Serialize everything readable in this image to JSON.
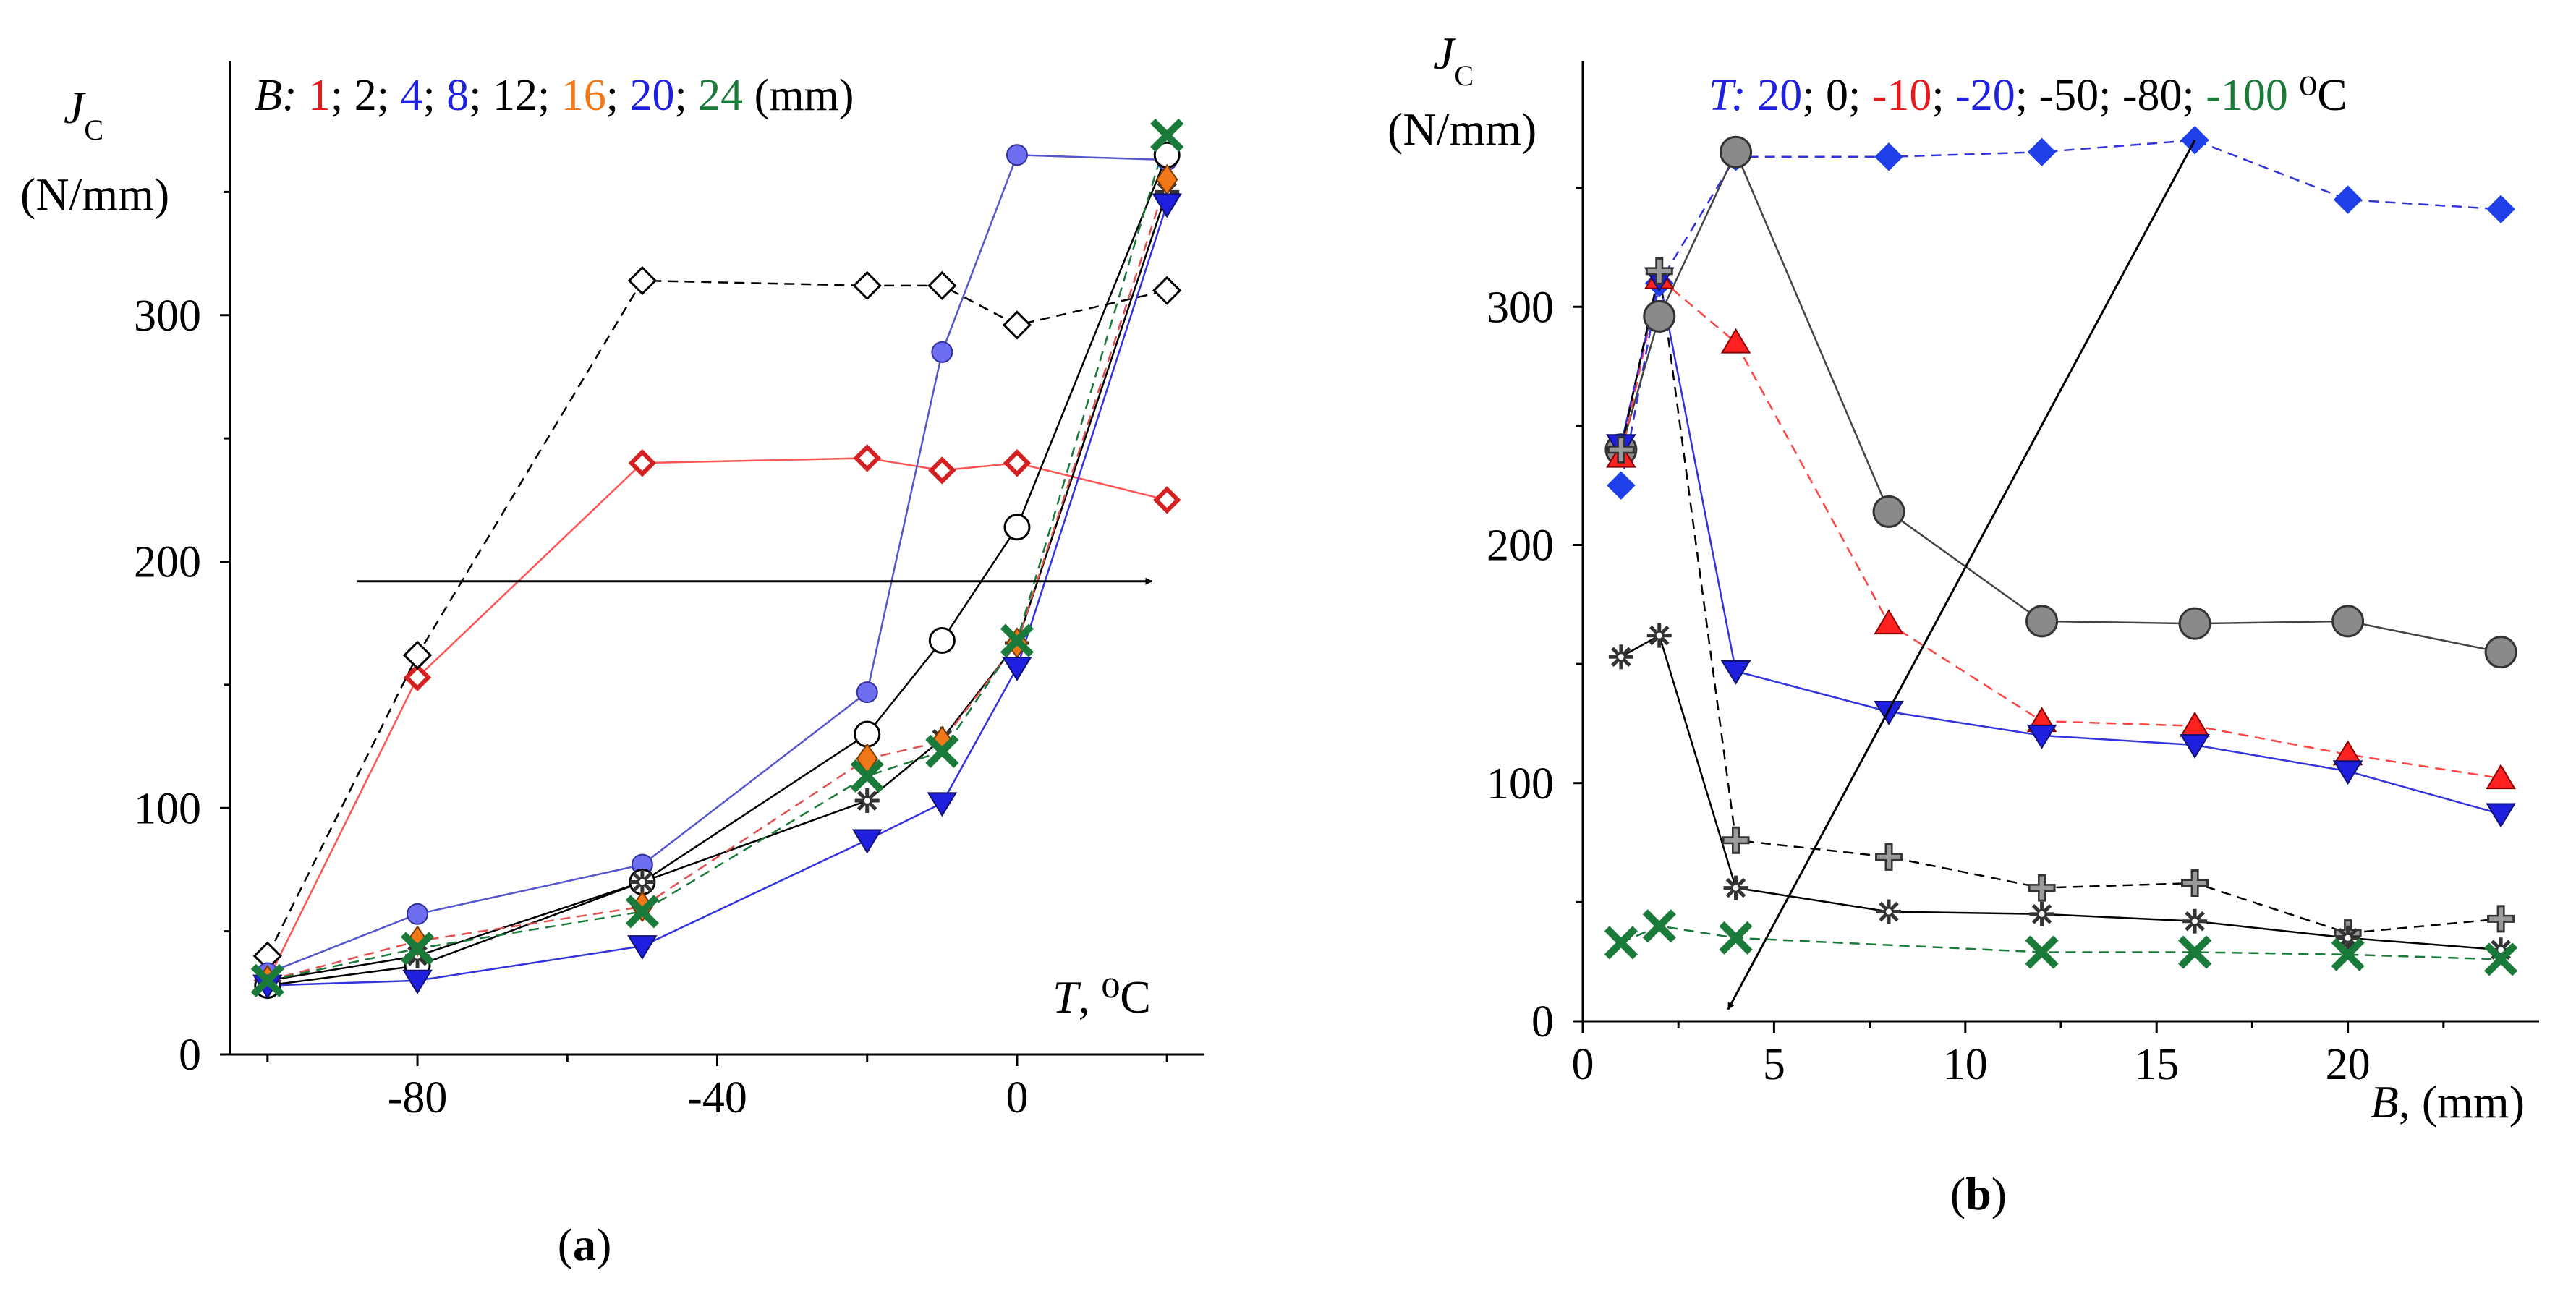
{
  "chart_data": [
    {
      "panel": "a",
      "type": "line",
      "ylabel": "J",
      "ylabel_sub": "C",
      "yunit": "(N/mm)",
      "xlabel_var": "T",
      "xlabel_unit": "⁰C",
      "xlim": [
        -105,
        25
      ],
      "ylim": [
        0,
        400
      ],
      "xticks": [
        -80,
        -40,
        0
      ],
      "yticks": [
        0,
        100,
        200,
        300
      ],
      "legend_title": "B:",
      "legend_suffix": "(mm)",
      "legend": [
        {
          "label": "1",
          "color": "#e41a1c",
          "sep": ";"
        },
        {
          "label": "2",
          "color": "#000000",
          "sep": ";"
        },
        {
          "label": "4",
          "color": "#1f1fe0",
          "sep": ";"
        },
        {
          "label": "8",
          "color": "#1f1fe0",
          "sep": ";"
        },
        {
          "label": "12",
          "color": "#000000",
          "sep": ";"
        },
        {
          "label": "16",
          "color": "#f07818",
          "sep": ";"
        },
        {
          "label": "20",
          "color": "#1f1fe0",
          "sep": ";"
        },
        {
          "label": "24",
          "color": "#1a7a3a",
          "sep": ""
        }
      ],
      "series": [
        {
          "name": "B=1 mm",
          "marker": "diamond-red",
          "line": "solid",
          "color": "#ff5555",
          "x": [
            -100,
            -80,
            -50,
            -20,
            -10,
            0,
            20
          ],
          "y": [
            30,
            153,
            240,
            242,
            237,
            240,
            225
          ]
        },
        {
          "name": "B=2 mm",
          "marker": "diamond-open",
          "line": "dashed",
          "color": "#000000",
          "x": [
            -100,
            -80,
            -50,
            -20,
            -10,
            0,
            20
          ],
          "y": [
            40,
            162,
            314,
            312,
            312,
            296,
            310
          ]
        },
        {
          "name": "B=4 mm",
          "marker": "circle-blue",
          "line": "solid",
          "color": "#5555cc",
          "x": [
            -100,
            -80,
            -50,
            -20,
            -10,
            0,
            20
          ],
          "y": [
            33,
            57,
            77,
            147,
            285,
            365,
            363
          ]
        },
        {
          "name": "B=8 mm",
          "marker": "circle-open",
          "line": "solid",
          "color": "#000000",
          "x": [
            -100,
            -80,
            -50,
            -20,
            -10,
            0,
            20
          ],
          "y": [
            28,
            36,
            70,
            130,
            168,
            214,
            365
          ]
        },
        {
          "name": "B=12 mm",
          "marker": "asterisk",
          "line": "solid",
          "color": "#000000",
          "x": [
            -100,
            -80,
            -50,
            -20,
            -10,
            0,
            20
          ],
          "y": [
            30,
            40,
            70,
            103,
            128,
            167,
            350
          ]
        },
        {
          "name": "B=16 mm",
          "marker": "diamond-orange",
          "line": "dashed",
          "color": "#e05050",
          "x": [
            -100,
            -80,
            -50,
            -20,
            -10,
            0,
            20
          ],
          "y": [
            30,
            46,
            60,
            120,
            127,
            167,
            355
          ]
        },
        {
          "name": "B=20 mm",
          "marker": "triangle-down-blue",
          "line": "solid",
          "color": "#3333dd",
          "x": [
            -100,
            -80,
            -50,
            -20,
            -10,
            0,
            20
          ],
          "y": [
            28,
            30,
            44,
            87,
            102,
            157,
            345
          ]
        },
        {
          "name": "B=24 mm",
          "marker": "x-green",
          "line": "dashed",
          "color": "#1a7a3a",
          "x": [
            -100,
            -80,
            -50,
            -20,
            -10,
            0,
            20
          ],
          "y": [
            30,
            43,
            58,
            113,
            123,
            168,
            373
          ]
        }
      ],
      "arrow": {
        "from": [
          -88,
          192
        ],
        "to": [
          18,
          192
        ]
      },
      "panel_label": "a"
    },
    {
      "panel": "b",
      "type": "line",
      "ylabel": "J",
      "ylabel_sub": "C",
      "yunit": "(N/mm)",
      "xlabel_var": "B",
      "xlabel_unit": ", (mm)",
      "xlim": [
        0,
        25
      ],
      "ylim": [
        0,
        400
      ],
      "xticks": [
        0,
        5,
        10,
        15,
        20
      ],
      "yticks": [
        0,
        100,
        200,
        300
      ],
      "legend_title": "T:",
      "legend_suffix": "⁰C",
      "legend": [
        {
          "label": "20",
          "color": "#1f1fe0",
          "sep": ";"
        },
        {
          "label": "0",
          "color": "#000000",
          "sep": ";"
        },
        {
          "label": "-10",
          "color": "#e41a1c",
          "sep": ";"
        },
        {
          "label": "-20",
          "color": "#1f1fe0",
          "sep": ";"
        },
        {
          "label": "-50",
          "color": "#000000",
          "sep": ";"
        },
        {
          "label": "-80",
          "color": "#000000",
          "sep": ";"
        },
        {
          "label": "-100",
          "color": "#1a7a3a",
          "sep": ""
        }
      ],
      "series": [
        {
          "name": "T=20 C",
          "marker": "diamond-blue",
          "line": "dashed",
          "color": "#3333dd",
          "x": [
            1,
            2,
            4,
            8,
            12,
            16,
            20,
            24
          ],
          "y": [
            225,
            310,
            363,
            363,
            365,
            370,
            345,
            341
          ]
        },
        {
          "name": "T=0 C",
          "marker": "circle-gray",
          "line": "solid",
          "color": "#444444",
          "x": [
            1,
            2,
            4,
            8,
            12,
            16,
            20,
            24
          ],
          "y": [
            240,
            296,
            365,
            214,
            168,
            167,
            168,
            155
          ]
        },
        {
          "name": "T=-10 C",
          "marker": "triangle-red",
          "line": "dashed",
          "color": "#ff4444",
          "x": [
            1,
            2,
            4,
            8,
            12,
            16,
            20,
            24
          ],
          "y": [
            237,
            312,
            285,
            167,
            126,
            124,
            112,
            102
          ]
        },
        {
          "name": "T=-20 C",
          "marker": "triangle-down-blue",
          "line": "solid",
          "color": "#3333dd",
          "x": [
            1,
            2,
            4,
            8,
            12,
            16,
            20,
            24
          ],
          "y": [
            242,
            312,
            147,
            130,
            120,
            116,
            105,
            87
          ]
        },
        {
          "name": "T=-50 C",
          "marker": "plus-gray",
          "line": "dashed",
          "color": "#000000",
          "x": [
            1,
            2,
            4,
            8,
            12,
            16,
            20,
            24
          ],
          "y": [
            240,
            315,
            76,
            69,
            56,
            58,
            37,
            43
          ]
        },
        {
          "name": "T=-80 C",
          "marker": "asterisk",
          "line": "solid",
          "color": "#000000",
          "x": [
            1,
            2,
            4,
            8,
            12,
            16,
            20,
            24
          ],
          "y": [
            153,
            162,
            56,
            46,
            45,
            42,
            35,
            30
          ]
        },
        {
          "name": "T=-100 C",
          "marker": "x-green",
          "line": "dashed",
          "color": "#1a7a3a",
          "x": [
            1,
            2,
            4,
            12,
            16,
            20,
            24
          ],
          "y": [
            33,
            40,
            35,
            29,
            29,
            28,
            26
          ]
        }
      ],
      "arrow": {
        "from": [
          16,
          370
        ],
        "to": [
          3.8,
          5
        ]
      },
      "panel_label": "b"
    }
  ]
}
